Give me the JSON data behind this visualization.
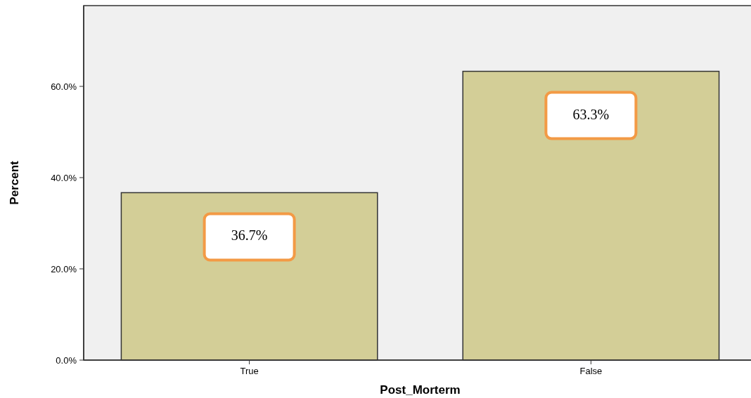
{
  "chart_data": {
    "type": "bar",
    "xlabel": "Post_Morterm",
    "ylabel": "Percent",
    "categories": [
      "True",
      "False"
    ],
    "values": [
      36.7,
      63.3
    ],
    "color": "#d3ce97",
    "value_labels": [
      "36.7%",
      "63.3%"
    ],
    "ylim": [
      0,
      77.7
    ],
    "yticks": [
      {
        "value": 0,
        "label": "0.0%"
      },
      {
        "value": 20,
        "label": "20.0%"
      },
      {
        "value": 40,
        "label": "40.0%"
      },
      {
        "value": 60,
        "label": "60.0%"
      }
    ],
    "grid": false
  }
}
